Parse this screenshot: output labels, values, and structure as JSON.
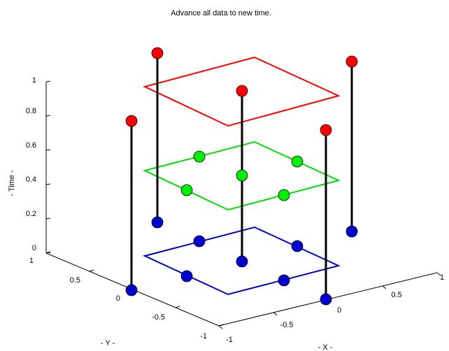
{
  "figure": {
    "title": "Advance all data to new time.",
    "axes": {
      "xlabel": "- X -",
      "ylabel": "- Y -",
      "zlabel": "- Time -"
    },
    "z_ticks": [
      "0",
      "0.2",
      "0.4",
      "0.6",
      "0.8",
      "1"
    ],
    "y_ticks": [
      "1",
      "0.5",
      "0",
      "-0.5",
      "-1"
    ],
    "x_ticks": [
      "-1",
      "-0.5",
      "0",
      "0.5",
      "1"
    ]
  },
  "colors": {
    "axis": "#000000",
    "stem": "#000000",
    "red_plane": "#ff0000",
    "green_plane": "#00dd00",
    "blue_plane": "#0000cc",
    "red_marker": "#ff0000",
    "green_marker": "#00ee00",
    "blue_marker": "#0000cc"
  }
}
